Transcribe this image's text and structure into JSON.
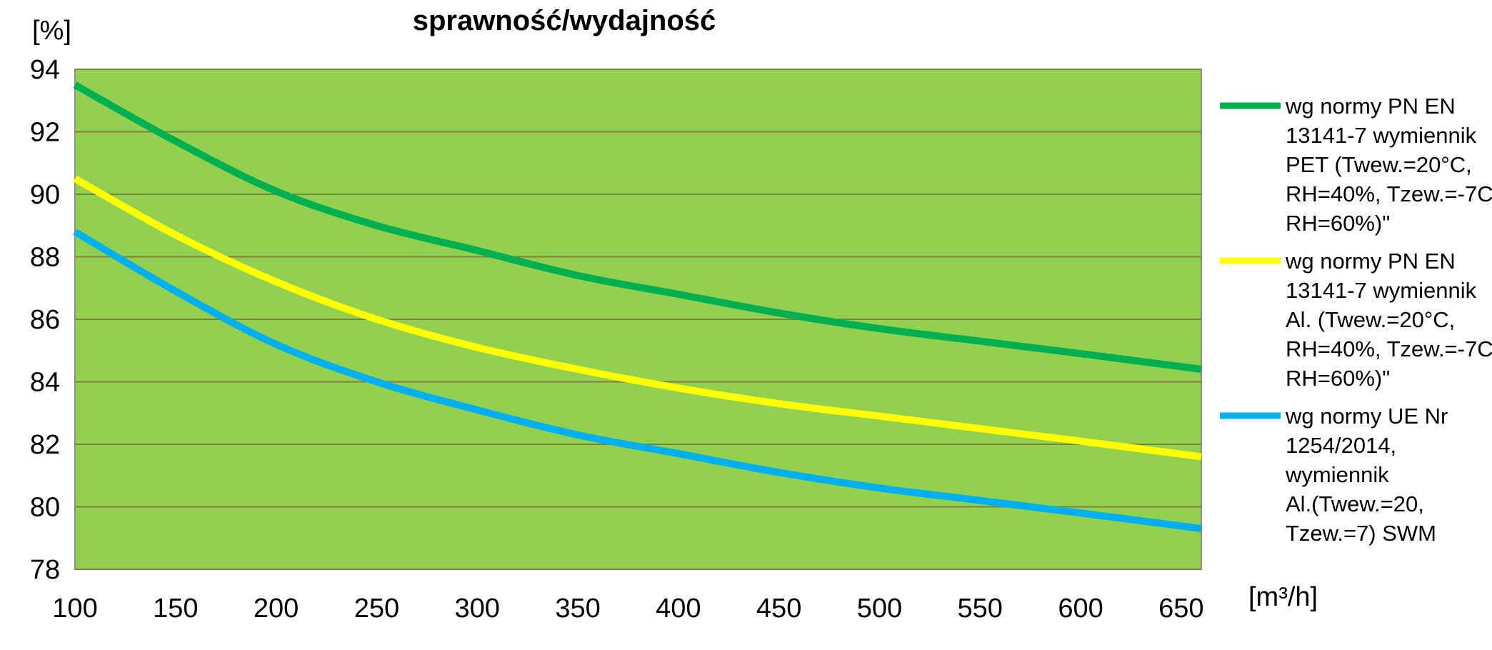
{
  "chart_data": {
    "type": "line",
    "title": "sprawność/wydajność",
    "ylabel": "[%]",
    "xlabel": "[m³/h]",
    "xlim": [
      100,
      660
    ],
    "ylim": [
      78,
      94
    ],
    "xticks": [
      100,
      150,
      200,
      250,
      300,
      350,
      400,
      450,
      500,
      550,
      600,
      650
    ],
    "yticks": [
      78,
      80,
      82,
      84,
      86,
      88,
      90,
      92,
      94
    ],
    "grid": true,
    "plot_background": "#92D050",
    "gridline_color": "#7F7F3F",
    "legend_position": "right",
    "series": [
      {
        "name": "wg normy PN EN 13141-7 wymiennik PET (Twew.=20°C, RH=40%, Tzew.=-7C, RH=60%)\"",
        "legend_lines": [
          "wg normy PN EN",
          "13141-7 wymiennik",
          "PET (Twew.=20°C,",
          "RH=40%, Tzew.=-7C,",
          "RH=60%)\""
        ],
        "color": "#00B050",
        "x": [
          100,
          150,
          200,
          250,
          300,
          350,
          400,
          450,
          500,
          550,
          600,
          660
        ],
        "y": [
          93.5,
          91.7,
          90.1,
          89.0,
          88.2,
          87.4,
          86.8,
          86.2,
          85.7,
          85.3,
          84.9,
          84.4
        ]
      },
      {
        "name": "wg normy PN EN 13141-7 wymiennik Al. (Twew.=20°C, RH=40%, Tzew.=-7C, RH=60%)\"",
        "legend_lines": [
          "wg normy PN EN",
          "13141-7 wymiennik",
          "Al. (Twew.=20°C,",
          "RH=40%, Tzew.=-7C,",
          "RH=60%)\""
        ],
        "color": "#FFFF00",
        "x": [
          100,
          150,
          200,
          250,
          300,
          350,
          400,
          450,
          500,
          550,
          600,
          660
        ],
        "y": [
          90.5,
          88.7,
          87.2,
          86.0,
          85.1,
          84.4,
          83.8,
          83.3,
          82.9,
          82.5,
          82.1,
          81.6
        ]
      },
      {
        "name": "wg normy UE Nr 1254/2014, wymiennik Al.(Twew.=20, Tzew.=7) SWM",
        "legend_lines": [
          "wg normy UE Nr",
          "1254/2014,",
          "wymiennik",
          "Al.(Twew.=20,",
          "Tzew.=7) SWM"
        ],
        "color": "#00B0F0",
        "x": [
          100,
          150,
          200,
          250,
          300,
          350,
          400,
          450,
          500,
          550,
          600,
          660
        ],
        "y": [
          88.8,
          86.9,
          85.2,
          84.0,
          83.1,
          82.3,
          81.7,
          81.1,
          80.6,
          80.2,
          79.8,
          79.3
        ]
      }
    ]
  }
}
